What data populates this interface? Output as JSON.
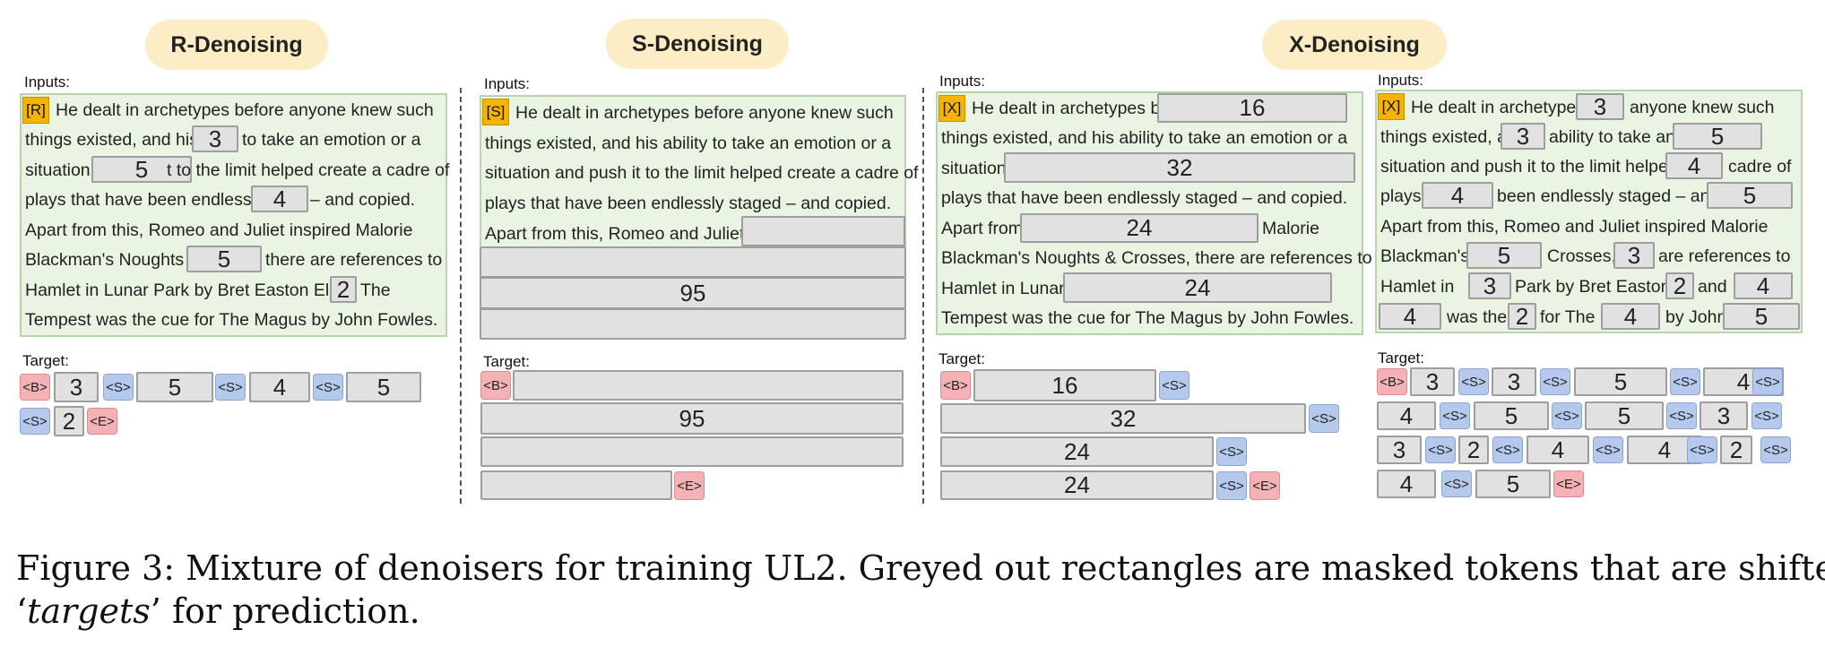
{
  "titles": {
    "r": "R-Denoising",
    "s": "S-Denoising",
    "x": "X-Denoising"
  },
  "labels": {
    "inputs": "Inputs:",
    "target": "Target:"
  },
  "r": {
    "prefix": "[R]",
    "l1": "He dealt in archetypes before anyone knew such",
    "l2a": "things existed, and his",
    "l2t": "3",
    "l2b": "to take an emotion or a",
    "l3a": "situation",
    "l3t": "5",
    "l3b": "t to the limit helped create a cadre of",
    "l4a": "plays that have been endlessly",
    "l4t": "4",
    "l4b": "– and copied.",
    "l5": "Apart from  this, Romeo and Juliet inspired Malorie",
    "l6a": "Blackman's Noughts",
    "l6t": "5",
    "l6b": "there are references to",
    "l7a": "Hamlet in Lunar Park by Bret Easton Ellis",
    "l7t": "2",
    "l7b": "The",
    "l8": "Tempest was the cue for The Magus by John Fowles.",
    "target": {
      "v1": "3",
      "v2": "5",
      "v3": "4",
      "v4": "5",
      "v5": "2"
    }
  },
  "s": {
    "prefix": "[S]",
    "l1": "He dealt in archetypes before anyone knew such",
    "l2": "things existed, and his ability to take an emotion or a",
    "l3": "situation and push it to the limit helped create a cadre of",
    "l4": "plays that have been endlessly staged – and copied.",
    "l5": "Apart from  this, Romeo and Juliet",
    "mask": "95",
    "target": {
      "v": "95"
    }
  },
  "x1": {
    "prefix": "[X]",
    "l1a": "He dealt in archetypes be",
    "l1t": "16",
    "l2": "things existed, and his ability to take an emotion or a",
    "l3a": "situation",
    "l3t": "32",
    "l4": "plays that have been endlessly staged – and copied.",
    "l5a": "Apart from",
    "l5t": "24",
    "l5b": "Malorie",
    "l6": "Blackman's Noughts & Crosses, there are references to",
    "l7a": "Hamlet in Lunar",
    "l7t": "24",
    "l8": "Tempest was the cue for The Magus by John Fowles.",
    "target": {
      "v1": "16",
      "v2": "32",
      "v3": "24",
      "v4": "24"
    }
  },
  "x2": {
    "prefix": "[X]",
    "l1a": "He dealt in archetypes",
    "l1t": "3",
    "l1b": "anyone knew such",
    "l2a": "things existed, a",
    "l2t1": "3",
    "l2b": "ability to take an",
    "l2t2": "5",
    "l3a": "situation and push it to the limit helped",
    "l3t": "4",
    "l3b": "cadre of",
    "l4a": "plays",
    "l4t1": "4",
    "l4b": "been endlessly staged – and",
    "l4t2": "5",
    "l5": "Apart from  this, Romeo and Juliet inspired Malorie",
    "l6a": "Blackman's",
    "l6t1": "5",
    "l6b": "Crosses,",
    "l6t2": "3",
    "l6c": "are references to",
    "l7a": "Hamlet in",
    "l7t1": "3",
    "l7b": "Park by Bret Easton",
    "l7t2": "2",
    "l7c": "and",
    "l7t3": "4",
    "l8t1": "4",
    "l8a": "was the",
    "l8t2": "2",
    "l8b": "for The",
    "l8t3": "4",
    "l8c": "by John",
    "l8t4": "5",
    "target": {
      "r1": [
        "3",
        "3",
        "5",
        "4"
      ],
      "r2": [
        "4",
        "5",
        "5",
        "3"
      ],
      "r3": [
        "3",
        "2",
        "4",
        "4",
        "2"
      ],
      "r4": [
        "4",
        "5"
      ]
    }
  },
  "tags": {
    "b": "<B>",
    "s": "<S>",
    "e": "<E>"
  },
  "caption": {
    "line1": "Figure 3: Mixture of denoisers for training UL2. Greyed out rectangles are masked tokens that are shifted to",
    "q_open": "‘",
    "emph": "targets",
    "q_close": "’",
    "line2_rest": " for prediction."
  }
}
